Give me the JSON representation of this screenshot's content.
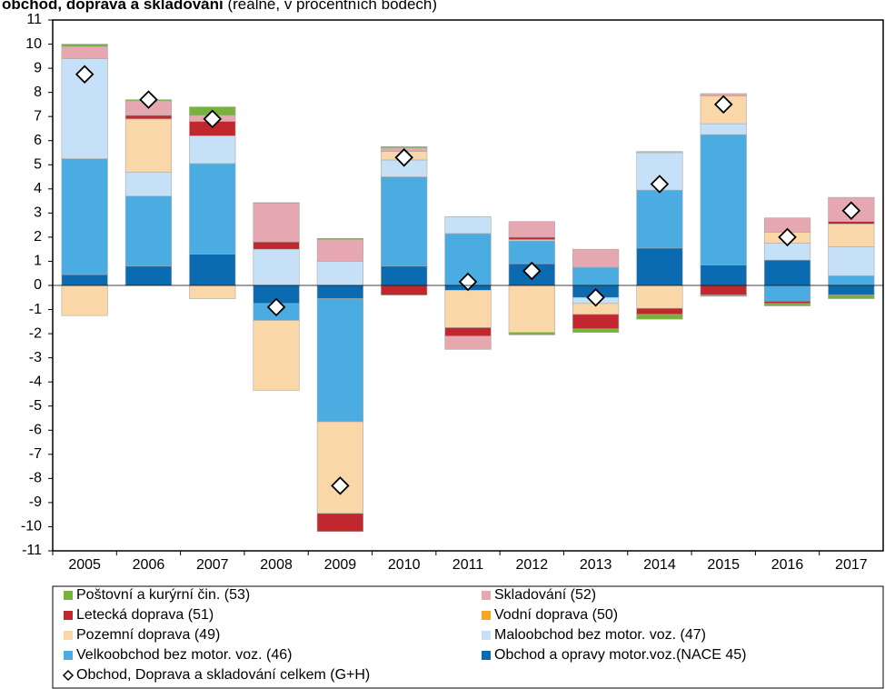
{
  "chart_data": {
    "type": "stacked-bar",
    "title": "obchod, doprava a skladování",
    "subtitle": "(reálně, v procentních bodech)",
    "categories": [
      "2005",
      "2006",
      "2007",
      "2008",
      "2009",
      "2010",
      "2011",
      "2012",
      "2013",
      "2014",
      "2015",
      "2016",
      "2017"
    ],
    "series": [
      {
        "name": "Obchod a opravy motor.voz.(NACE 45)",
        "color": "#0b6bb1",
        "values": [
          0.45,
          0.8,
          1.3,
          -0.75,
          -0.55,
          0.8,
          -0.2,
          0.9,
          -0.5,
          1.55,
          0.85,
          1.05,
          -0.4
        ]
      },
      {
        "name": "Velkoobchod bez motor. voz. (46)",
        "color": "#4bace2",
        "values": [
          4.8,
          2.9,
          3.75,
          -0.7,
          -5.1,
          3.7,
          2.15,
          0.95,
          0.75,
          2.4,
          5.4,
          -0.65,
          0.4
        ]
      },
      {
        "name": "Maloobchod bez motor. voz. (47)",
        "color": "#c6e0f7",
        "values": [
          4.15,
          1.0,
          1.15,
          1.5,
          1.0,
          0.7,
          0.7,
          0.05,
          -0.25,
          1.55,
          0.45,
          0.7,
          1.2
        ]
      },
      {
        "name": "Pozemní doprava (49)",
        "color": "#fad7a8",
        "values": [
          -1.25,
          2.2,
          -0.55,
          -2.9,
          -3.8,
          0.35,
          -1.55,
          -1.95,
          -0.45,
          -0.95,
          1.15,
          0.45,
          0.95
        ]
      },
      {
        "name": "Vodní doprava (50)",
        "color": "#f5a623",
        "values": [
          0,
          0,
          0,
          0,
          0,
          0,
          0,
          0,
          0,
          0,
          0,
          0,
          0
        ]
      },
      {
        "name": "Letecká doprava (51)",
        "color": "#c0282d",
        "values": [
          0,
          0.15,
          0.6,
          0.3,
          -0.75,
          -0.4,
          -0.35,
          0.1,
          -0.6,
          -0.25,
          -0.4,
          -0.1,
          0.1
        ]
      },
      {
        "name": "Skladování (52)",
        "color": "#e6a8b0",
        "values": [
          0.5,
          0.6,
          0.25,
          1.6,
          0.9,
          0.15,
          -0.55,
          0.65,
          0.75,
          0.05,
          0.1,
          0.6,
          1.0
        ]
      },
      {
        "name": "Poštovní a kurýrní čin. (53)",
        "color": "#77b23a",
        "values": [
          0.1,
          0.05,
          0.35,
          0.03,
          0.05,
          0.05,
          0,
          -0.1,
          -0.15,
          -0.2,
          -0.05,
          -0.1,
          -0.15
        ]
      }
    ],
    "total": {
      "name": "Obchod, Doprava a skladování celkem (G+H)",
      "values": [
        8.75,
        7.7,
        6.9,
        -0.9,
        -8.3,
        5.3,
        0.15,
        0.6,
        -0.5,
        4.2,
        7.5,
        2.0,
        3.1
      ]
    },
    "ylim": [
      -11,
      11
    ],
    "yticks": [
      -11,
      -10,
      -9,
      -8,
      -7,
      -6,
      -5,
      -4,
      -3,
      -2,
      -1,
      0,
      1,
      2,
      3,
      4,
      5,
      6,
      7,
      8,
      9,
      10,
      11
    ],
    "grid": false
  }
}
